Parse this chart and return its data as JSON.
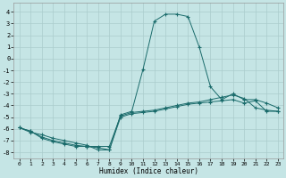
{
  "xlabel": "Humidex (Indice chaleur)",
  "background_color": "#c5e5e5",
  "grid_color": "#aacccc",
  "line_color": "#1a6b6b",
  "xlim": [
    -0.5,
    23.5
  ],
  "ylim": [
    -8.5,
    4.8
  ],
  "xticks": [
    0,
    1,
    2,
    3,
    4,
    5,
    6,
    7,
    8,
    9,
    10,
    11,
    12,
    13,
    14,
    15,
    16,
    17,
    18,
    19,
    20,
    21,
    22,
    23
  ],
  "yticks": [
    -8,
    -7,
    -6,
    -5,
    -4,
    -3,
    -2,
    -1,
    0,
    1,
    2,
    3,
    4
  ],
  "line1_x": [
    0,
    1,
    2,
    3,
    4,
    5,
    6,
    7,
    8,
    9,
    10,
    11,
    12,
    13,
    14,
    15,
    16,
    17,
    18,
    19,
    20,
    21,
    22,
    23
  ],
  "line1_y": [
    -5.9,
    -6.3,
    -6.5,
    -6.8,
    -7.0,
    -7.2,
    -7.4,
    -7.8,
    -7.8,
    -4.8,
    -4.5,
    -0.9,
    3.2,
    3.8,
    3.8,
    3.6,
    1.0,
    -2.4,
    -3.5,
    -3.0,
    -3.5,
    -3.5,
    -3.8,
    -4.2
  ],
  "line2_x": [
    0,
    1,
    2,
    3,
    4,
    5,
    6,
    7,
    8,
    9,
    10,
    11,
    12,
    13,
    14,
    15,
    16,
    17,
    18,
    19,
    20,
    21,
    22,
    23
  ],
  "line2_y": [
    -5.9,
    -6.2,
    -6.7,
    -7.0,
    -7.2,
    -7.4,
    -7.5,
    -7.5,
    -7.5,
    -4.9,
    -4.6,
    -4.5,
    -4.4,
    -4.2,
    -4.0,
    -3.8,
    -3.7,
    -3.5,
    -3.3,
    -3.1,
    -3.4,
    -4.2,
    -4.4,
    -4.5
  ],
  "line3_x": [
    0,
    1,
    2,
    3,
    4,
    5,
    6,
    7,
    8,
    9,
    10,
    11,
    12,
    13,
    14,
    15,
    16,
    17,
    18,
    19,
    20,
    21,
    22,
    23
  ],
  "line3_y": [
    -5.9,
    -6.2,
    -6.8,
    -7.1,
    -7.3,
    -7.5,
    -7.5,
    -7.6,
    -7.8,
    -5.0,
    -4.7,
    -4.6,
    -4.5,
    -4.3,
    -4.1,
    -3.9,
    -3.8,
    -3.7,
    -3.6,
    -3.5,
    -3.8,
    -3.6,
    -4.5,
    -4.5
  ]
}
